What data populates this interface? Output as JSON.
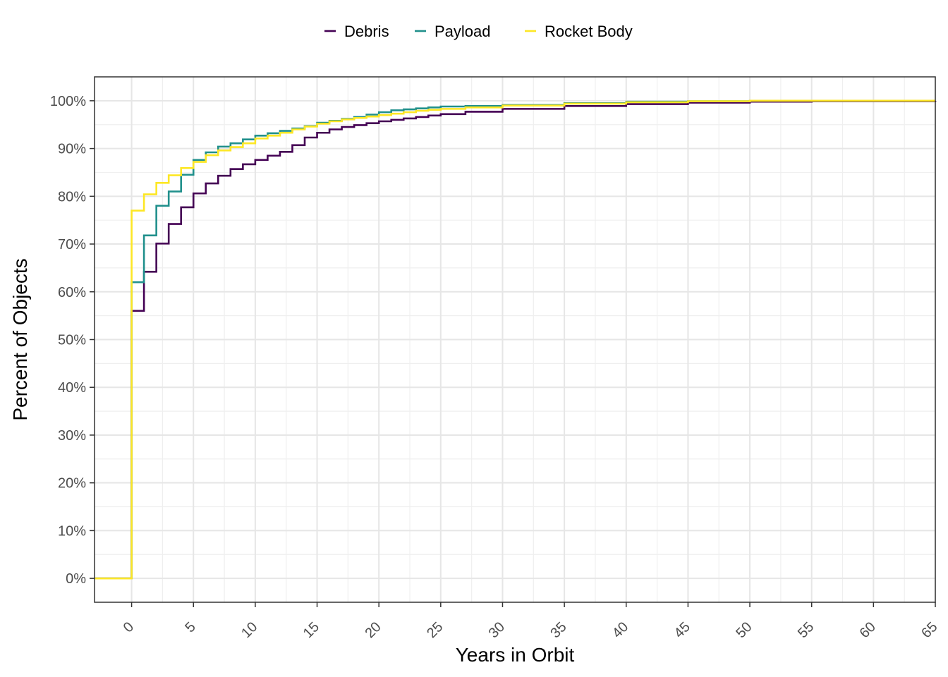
{
  "chart_data": {
    "type": "line",
    "step": true,
    "title": "",
    "xlabel": "Years in Orbit",
    "ylabel": "Percent of Objects",
    "xlim": [
      -3,
      65
    ],
    "ylim": [
      -5,
      105
    ],
    "x_ticks": [
      0,
      5,
      10,
      15,
      20,
      25,
      30,
      35,
      40,
      45,
      50,
      55,
      60,
      65
    ],
    "y_ticks": [
      0,
      10,
      20,
      30,
      40,
      50,
      60,
      70,
      80,
      90,
      100
    ],
    "y_tick_labels": [
      "0%",
      "10%",
      "20%",
      "30%",
      "40%",
      "50%",
      "60%",
      "70%",
      "80%",
      "90%",
      "100%"
    ],
    "grid": true,
    "legend_position": "top",
    "series": [
      {
        "name": "Debris",
        "color": "#440154",
        "x": [
          -3,
          0,
          1,
          2,
          3,
          4,
          5,
          6,
          7,
          8,
          9,
          10,
          11,
          12,
          13,
          14,
          15,
          16,
          17,
          18,
          19,
          20,
          21,
          22,
          23,
          24,
          25,
          27,
          30,
          35,
          40,
          45,
          50,
          55,
          65
        ],
        "values": [
          0,
          56,
          64.2,
          70.1,
          74.2,
          77.7,
          80.6,
          82.7,
          84.3,
          85.7,
          86.7,
          87.6,
          88.5,
          89.3,
          90.7,
          92.3,
          93.3,
          94.0,
          94.5,
          94.9,
          95.3,
          95.7,
          96.0,
          96.3,
          96.6,
          96.9,
          97.2,
          97.7,
          98.3,
          98.9,
          99.3,
          99.6,
          99.8,
          99.9,
          100
        ]
      },
      {
        "name": "Payload",
        "color": "#21908C",
        "x": [
          -3,
          0,
          1,
          2,
          3,
          4,
          5,
          6,
          7,
          8,
          9,
          10,
          11,
          12,
          13,
          14,
          15,
          16,
          17,
          18,
          19,
          20,
          21,
          22,
          23,
          24,
          25,
          27,
          30,
          35,
          40,
          45,
          50,
          55,
          65
        ],
        "values": [
          0,
          62,
          71.8,
          78.0,
          81.0,
          84.5,
          87.6,
          89.2,
          90.4,
          91.1,
          91.9,
          92.7,
          93.2,
          93.7,
          94.2,
          94.7,
          95.4,
          95.8,
          96.2,
          96.6,
          97.1,
          97.6,
          98.0,
          98.2,
          98.4,
          98.6,
          98.8,
          98.9,
          99.1,
          99.5,
          99.8,
          99.9,
          100,
          100,
          100
        ]
      },
      {
        "name": "Rocket Body",
        "color": "#FDE725",
        "x": [
          -3,
          0,
          1,
          2,
          3,
          4,
          5,
          6,
          7,
          8,
          9,
          10,
          11,
          12,
          13,
          14,
          15,
          16,
          17,
          18,
          19,
          20,
          21,
          22,
          23,
          24,
          25,
          27,
          30,
          35,
          40,
          45,
          50,
          55,
          65
        ],
        "values": [
          0,
          77,
          80.4,
          82.8,
          84.4,
          85.9,
          87.2,
          88.6,
          89.6,
          90.3,
          91.1,
          92.1,
          92.7,
          93.3,
          94.0,
          94.6,
          95.2,
          95.7,
          96.1,
          96.4,
          96.7,
          97.0,
          97.3,
          97.6,
          97.9,
          98.1,
          98.3,
          98.6,
          99.0,
          99.4,
          99.7,
          99.9,
          100,
          100,
          100
        ]
      }
    ]
  }
}
